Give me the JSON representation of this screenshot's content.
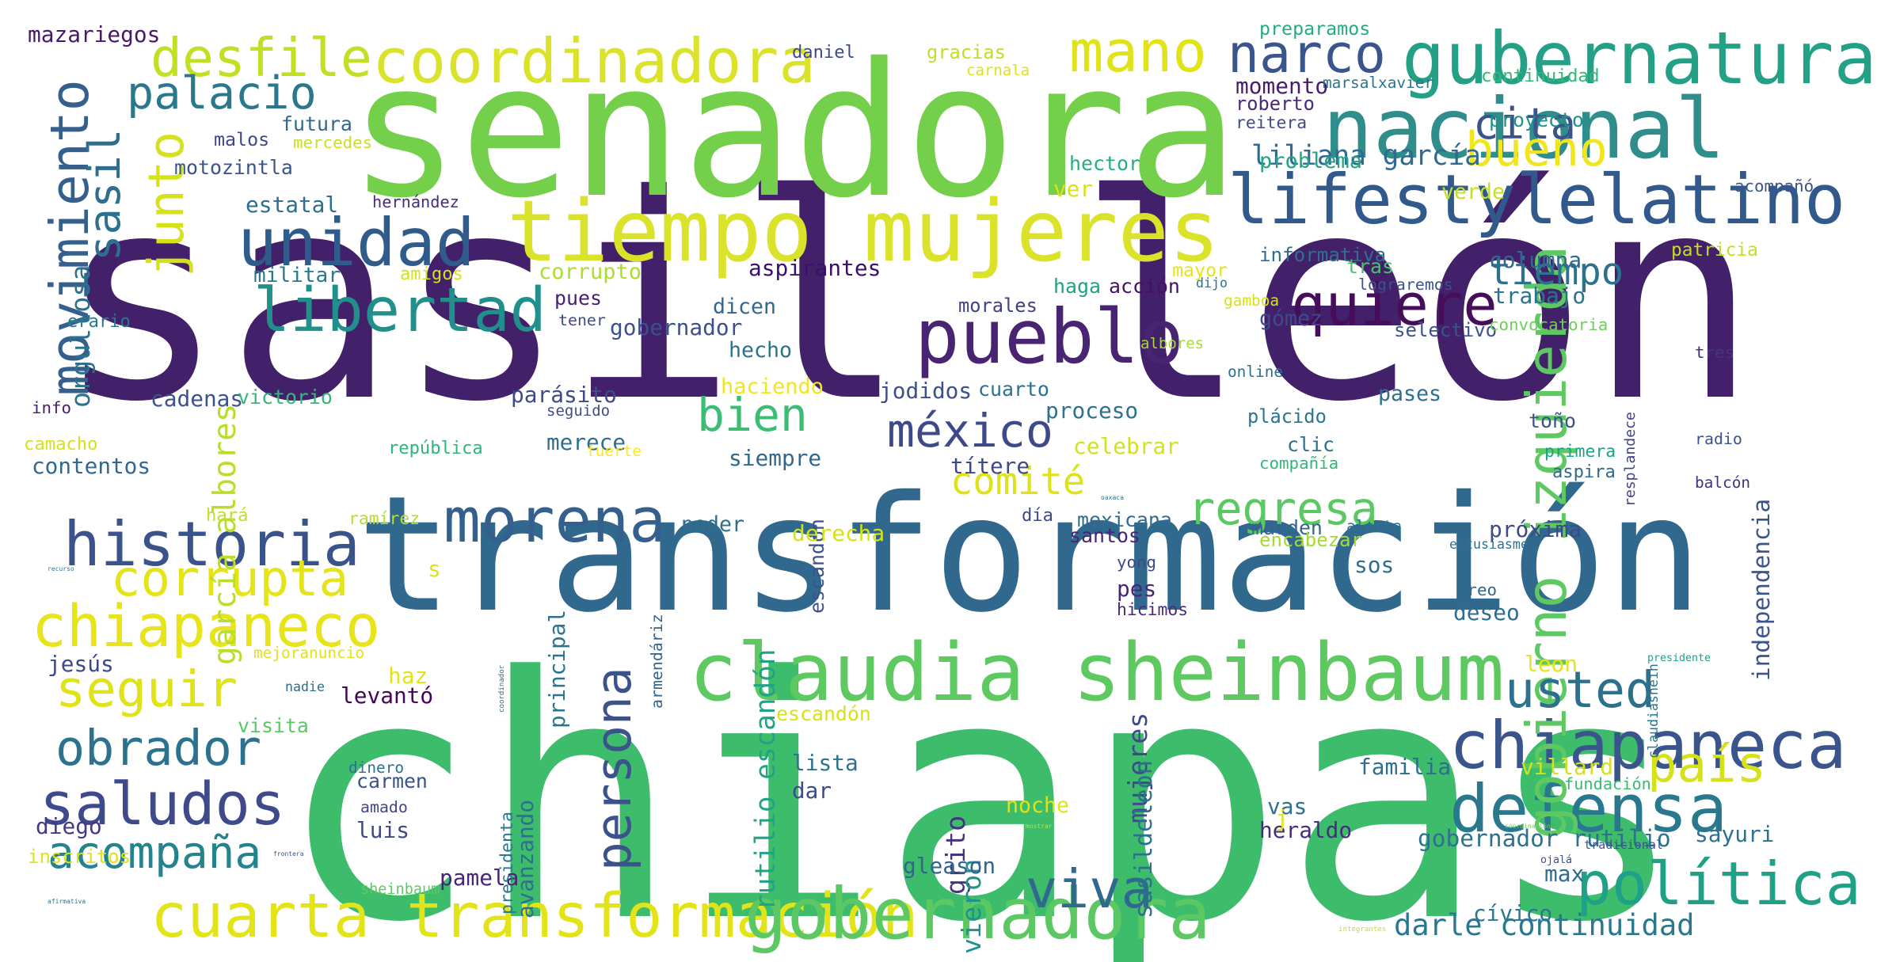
{
  "colors": {
    "background": "#ffffff"
  },
  "words": [
    {
      "text": "sasil león",
      "color": "#43216a"
    },
    {
      "text": "chiapas",
      "color": "#3dbc6c"
    },
    {
      "text": "senadora",
      "color": "#74cf4a"
    },
    {
      "text": "transformación",
      "color": "#30698d"
    },
    {
      "text": "tiempo mujeres",
      "color": "#dbe22a"
    },
    {
      "text": "claudia sheinbaum",
      "color": "#5ec961"
    },
    {
      "text": "lifestylelatino",
      "color": "#32598b"
    },
    {
      "text": "nacional",
      "color": "#2f8e8c"
    },
    {
      "text": "gubernatura",
      "color": "#23a085"
    },
    {
      "text": "coordinadora",
      "color": "#dbe22a"
    },
    {
      "text": "cuarta transformación",
      "color": "#e3e418"
    },
    {
      "text": "gobernadora",
      "color": "#5cc863"
    },
    {
      "text": "pueblo",
      "color": "#482473"
    },
    {
      "text": "unidad",
      "color": "#2f5c8a"
    },
    {
      "text": "quiere",
      "color": "#450d5a"
    },
    {
      "text": "libertad",
      "color": "#21908c"
    },
    {
      "text": "historia",
      "color": "#3a538b"
    },
    {
      "text": "chiapaneco",
      "color": "#e7e419"
    },
    {
      "text": "chiapaneca",
      "color": "#3a548c"
    },
    {
      "text": "morena",
      "color": "#35608d"
    },
    {
      "text": "saludos",
      "color": "#3e4a89"
    },
    {
      "text": "política",
      "color": "#1fa187"
    },
    {
      "text": "defensa",
      "color": "#2a788e"
    },
    {
      "text": "gobierno izquierda",
      "color": "#5ec962"
    },
    {
      "text": "desfile",
      "color": "#c2df23"
    },
    {
      "text": "narco",
      "color": "#3a548c"
    },
    {
      "text": "palacio",
      "color": "#2a788e"
    },
    {
      "text": "movimiento",
      "color": "#355f8d"
    },
    {
      "text": "sasil",
      "color": "#2e6e8e"
    },
    {
      "text": "junto",
      "color": "#d5e21a"
    },
    {
      "text": "mano",
      "color": "#e0e318"
    },
    {
      "text": "cita",
      "color": "#3b528b"
    },
    {
      "text": "bueno",
      "color": "#f1e51d"
    },
    {
      "text": "tiempo",
      "color": "#2c728e"
    },
    {
      "text": "bien",
      "color": "#3cbc75"
    },
    {
      "text": "méxico",
      "color": "#3e4989"
    },
    {
      "text": "comité",
      "color": "#dde318"
    },
    {
      "text": "regresa",
      "color": "#5cc863"
    },
    {
      "text": "corrupta",
      "color": "#e5e419"
    },
    {
      "text": "seguir",
      "color": "#dfe318"
    },
    {
      "text": "obrador",
      "color": "#2c728e"
    },
    {
      "text": "acompaña",
      "color": "#25838e"
    },
    {
      "text": "persona",
      "color": "#3b528b"
    },
    {
      "text": "usted",
      "color": "#2d708e"
    },
    {
      "text": "país",
      "color": "#d5e21a"
    },
    {
      "text": "viva",
      "color": "#31688e"
    },
    {
      "text": "liliana garcía",
      "color": "#306a8e"
    },
    {
      "text": "garcía albores",
      "color": "#b8de29"
    },
    {
      "text": "gobernador rutilio",
      "color": "#2d718e"
    },
    {
      "text": "darle continuidad",
      "color": "#2a778e"
    },
    {
      "text": "rutilio escandón",
      "color": "#20a486"
    },
    {
      "text": "mazariegos",
      "color": "#48186a"
    },
    {
      "text": "daniel",
      "color": "#3e4a89"
    },
    {
      "text": "gracias",
      "color": "#c0df25"
    },
    {
      "text": "carnala",
      "color": "#dde318"
    },
    {
      "text": "preparamos",
      "color": "#25ab82"
    },
    {
      "text": "momento",
      "color": "#481b6d"
    },
    {
      "text": "marsalxavier",
      "color": "#2b758e"
    },
    {
      "text": "continuidad",
      "color": "#35b779"
    },
    {
      "text": "roberto",
      "color": "#482878"
    },
    {
      "text": "reitera",
      "color": "#3e4c8a"
    },
    {
      "text": "proyecto",
      "color": "#21918c"
    },
    {
      "text": "futura",
      "color": "#31688e"
    },
    {
      "text": "malos",
      "color": "#404688"
    },
    {
      "text": "mercedes",
      "color": "#c8e020"
    },
    {
      "text": "motozintla",
      "color": "#3a548c"
    },
    {
      "text": "problema",
      "color": "#21a685"
    },
    {
      "text": "hector",
      "color": "#26ad81"
    },
    {
      "text": "ver",
      "color": "#d8e219"
    },
    {
      "text": "verde",
      "color": "#c5e021"
    },
    {
      "text": "acompañó",
      "color": "#3b528b"
    },
    {
      "text": "estatal",
      "color": "#2d708e"
    },
    {
      "text": "hernández",
      "color": "#472e7c"
    },
    {
      "text": "orgullosa",
      "color": "#2c728e"
    },
    {
      "text": "militar",
      "color": "#2a788e"
    },
    {
      "text": "amigos",
      "color": "#d2e21b"
    },
    {
      "text": "corrupto",
      "color": "#addc30"
    },
    {
      "text": "aspirantes",
      "color": "#3b0f70"
    },
    {
      "text": "haga",
      "color": "#1fa187"
    },
    {
      "text": "acción",
      "color": "#471063"
    },
    {
      "text": "dijo",
      "color": "#2b748e"
    },
    {
      "text": "mayor",
      "color": "#e5e419"
    },
    {
      "text": "informativa",
      "color": "#2e6f8e"
    },
    {
      "text": "tras",
      "color": "#4ac16d"
    },
    {
      "text": "patricia",
      "color": "#c2df23"
    },
    {
      "text": "columna",
      "color": "#31688e"
    },
    {
      "text": "lograremos",
      "color": "#3b528b"
    },
    {
      "text": "trabajo",
      "color": "#2c718e"
    },
    {
      "text": "erario",
      "color": "#2a788e"
    },
    {
      "text": "pues",
      "color": "#481f70"
    },
    {
      "text": "tener",
      "color": "#3e4c8a"
    },
    {
      "text": "dicen",
      "color": "#31678e"
    },
    {
      "text": "morales",
      "color": "#424086"
    },
    {
      "text": "gamboa",
      "color": "#d8e219"
    },
    {
      "text": "selectivo",
      "color": "#3b528b"
    },
    {
      "text": "convocatoria",
      "color": "#6ece58"
    },
    {
      "text": "gobernador",
      "color": "#3b518b"
    },
    {
      "text": "gómez",
      "color": "#3e4a89"
    },
    {
      "text": "tres",
      "color": "#46337f"
    },
    {
      "text": "hecho",
      "color": "#2c728e"
    },
    {
      "text": "albores",
      "color": "#a5db36"
    },
    {
      "text": "online",
      "color": "#2d708e"
    },
    {
      "text": "cadenas",
      "color": "#3b528b"
    },
    {
      "text": "victorio",
      "color": "#35b779"
    },
    {
      "text": "parásito",
      "color": "#3e4a89"
    },
    {
      "text": "haciendo",
      "color": "#f1e51d"
    },
    {
      "text": "jodidos",
      "color": "#3b518b"
    },
    {
      "text": "cuarto",
      "color": "#2c718e"
    },
    {
      "text": "pases",
      "color": "#2e6e8e"
    },
    {
      "text": "info",
      "color": "#482071"
    },
    {
      "text": "seguido",
      "color": "#3e4c8a"
    },
    {
      "text": "proceso",
      "color": "#2c718e"
    },
    {
      "text": "plácido",
      "color": "#2a768e"
    },
    {
      "text": "toño",
      "color": "#3b528b"
    },
    {
      "text": "resplandece",
      "color": "#424086"
    },
    {
      "text": "camacho",
      "color": "#d2e21b"
    },
    {
      "text": "república",
      "color": "#2fb47c"
    },
    {
      "text": "merece",
      "color": "#2e6e8e"
    },
    {
      "text": "fuerte",
      "color": "#fde725"
    },
    {
      "text": "siempre",
      "color": "#31688e"
    },
    {
      "text": "títere",
      "color": "#3e4989"
    },
    {
      "text": "celebrar",
      "color": "#d2e21b"
    },
    {
      "text": "clic",
      "color": "#2c728e"
    },
    {
      "text": "compañía",
      "color": "#32b67a"
    },
    {
      "text": "primera",
      "color": "#1fa088"
    },
    {
      "text": "aspira",
      "color": "#31688e"
    },
    {
      "text": "radio",
      "color": "#3b528b"
    },
    {
      "text": "contentos",
      "color": "#31688e"
    },
    {
      "text": "balcón",
      "color": "#46307e"
    },
    {
      "text": "hará",
      "color": "#c0df25"
    },
    {
      "text": "ramírez",
      "color": "#b5de2b"
    },
    {
      "text": "poder",
      "color": "#2e6e8e"
    },
    {
      "text": "escandón",
      "color": "#3b528b"
    },
    {
      "text": "derecha",
      "color": "#d5e21a"
    },
    {
      "text": "día",
      "color": "#3e4989"
    },
    {
      "text": "mexicana",
      "color": "#2f6b8e"
    },
    {
      "text": "marden",
      "color": "#32648e"
    },
    {
      "text": "alerta",
      "color": "#2c718e"
    },
    {
      "text": "próxima",
      "color": "#3e4989"
    },
    {
      "text": "independencia",
      "color": "#3a548c"
    },
    {
      "text": "santos",
      "color": "#482475"
    },
    {
      "text": "encabezar",
      "color": "#a2da37"
    },
    {
      "text": "entusiasme",
      "color": "#2c728e"
    },
    {
      "text": "recurso",
      "color": "#2b748e"
    },
    {
      "text": "s",
      "color": "#dde318"
    },
    {
      "text": "yong",
      "color": "#3e4a89"
    },
    {
      "text": "sos",
      "color": "#2e6f8e"
    },
    {
      "text": "creo",
      "color": "#31688e"
    },
    {
      "text": "pes",
      "color": "#482576"
    },
    {
      "text": "deseo",
      "color": "#2e6e8e"
    },
    {
      "text": "principal",
      "color": "#2b748e"
    },
    {
      "text": "hicimos",
      "color": "#472d7b"
    },
    {
      "text": "jesús",
      "color": "#3e4989"
    },
    {
      "text": "mejoranuncio",
      "color": "#dfe318"
    },
    {
      "text": "armendáriz",
      "color": "#32648e"
    },
    {
      "text": "haz",
      "color": "#e3e418"
    },
    {
      "text": "coordinador",
      "color": "#2c718e"
    },
    {
      "text": "leon",
      "color": "#e5e419"
    },
    {
      "text": "presidente",
      "color": "#1fa187"
    },
    {
      "text": "nadie",
      "color": "#306a8e"
    },
    {
      "text": "levantó",
      "color": "#450559"
    },
    {
      "text": "mujeres",
      "color": "#3e4a89"
    },
    {
      "text": "claudiashein",
      "color": "#2b758e"
    },
    {
      "text": "escandón",
      "color": "#d8e219"
    },
    {
      "text": "visita",
      "color": "#5ac864"
    },
    {
      "text": "dinero",
      "color": "#2e6e8e"
    },
    {
      "text": "lista",
      "color": "#2c728e"
    },
    {
      "text": "oaxaca",
      "color": "#2b758e"
    },
    {
      "text": "familia",
      "color": "#2e6e8e"
    },
    {
      "text": "villard",
      "color": "#d2e21b"
    },
    {
      "text": "fundación",
      "color": "#3bbb75"
    },
    {
      "text": "carmen",
      "color": "#3b528b"
    },
    {
      "text": "amado",
      "color": "#404688"
    },
    {
      "text": "dar",
      "color": "#3e4989"
    },
    {
      "text": "vas",
      "color": "#2c728e"
    },
    {
      "text": "noche",
      "color": "#e0e318"
    },
    {
      "text": "grito",
      "color": "#46337f"
    },
    {
      "text": "tradicional",
      "color": "#3b528b"
    },
    {
      "text": "coordinación",
      "color": "#6ece58"
    },
    {
      "text": "sasildeleon",
      "color": "#2d708e"
    },
    {
      "text": "diego",
      "color": "#443983"
    },
    {
      "text": "luis",
      "color": "#3e4989"
    },
    {
      "text": "avanzando",
      "color": "#2d708e"
    },
    {
      "text": "vieron",
      "color": "#21918c"
    },
    {
      "text": "heraldo",
      "color": "#472d7b"
    },
    {
      "text": "j",
      "color": "#e3e418"
    },
    {
      "text": "sayuri",
      "color": "#2c718e"
    },
    {
      "text": "frontera",
      "color": "#3b528b"
    },
    {
      "text": "mostrar",
      "color": "#c8e020"
    },
    {
      "text": "gleason",
      "color": "#32648e"
    },
    {
      "text": "inscritos",
      "color": "#dfe318"
    },
    {
      "text": "pamela",
      "color": "#482576"
    },
    {
      "text": "integrantes",
      "color": "#c2df23"
    },
    {
      "text": "cívico",
      "color": "#2a778e"
    },
    {
      "text": "max",
      "color": "#2f6b8e"
    },
    {
      "text": "ojalá",
      "color": "#3b528b"
    },
    {
      "text": "presidenta",
      "color": "#2a788e"
    },
    {
      "text": "sheinbaum",
      "color": "#5ec962"
    },
    {
      "text": "afirmativa",
      "color": "#2e6e8e"
    }
  ]
}
